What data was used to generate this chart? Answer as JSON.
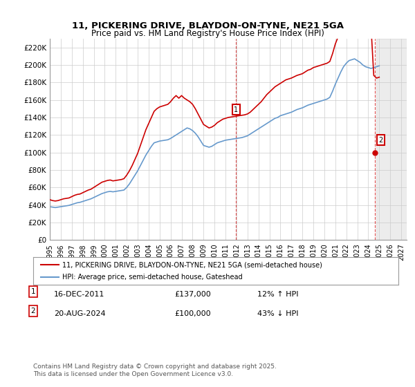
{
  "title": "11, PICKERING DRIVE, BLAYDON-ON-TYNE, NE21 5GA",
  "subtitle": "Price paid vs. HM Land Registry's House Price Index (HPI)",
  "ylabel": "",
  "xlabel": "",
  "ylim": [
    0,
    230000
  ],
  "xlim_start": 1995.0,
  "xlim_end": 2027.5,
  "yticks": [
    0,
    20000,
    40000,
    60000,
    80000,
    100000,
    120000,
    140000,
    160000,
    180000,
    200000,
    220000
  ],
  "ytick_labels": [
    "£0",
    "£20K",
    "£40K",
    "£60K",
    "£80K",
    "£100K",
    "£120K",
    "£140K",
    "£160K",
    "£180K",
    "£200K",
    "£220K"
  ],
  "xticks": [
    1995,
    1996,
    1997,
    1998,
    1999,
    2000,
    2001,
    2002,
    2003,
    2004,
    2005,
    2006,
    2007,
    2008,
    2009,
    2010,
    2011,
    2012,
    2013,
    2014,
    2015,
    2016,
    2017,
    2018,
    2019,
    2020,
    2021,
    2022,
    2023,
    2024,
    2025,
    2026,
    2027
  ],
  "property_color": "#cc0000",
  "hpi_color": "#6699cc",
  "background_color": "#ffffff",
  "grid_color": "#cccccc",
  "sale1_x": 2011.96,
  "sale1_y": 137000,
  "sale1_label": "1",
  "sale2_x": 2024.63,
  "sale2_y": 100000,
  "sale2_label": "2",
  "legend_property": "11, PICKERING DRIVE, BLAYDON-ON-TYNE, NE21 5GA (semi-detached house)",
  "legend_hpi": "HPI: Average price, semi-detached house, Gateshead",
  "note1_label": "1",
  "note1_date": "16-DEC-2011",
  "note1_price": "£137,000",
  "note1_hpi": "12% ↑ HPI",
  "note2_label": "2",
  "note2_date": "20-AUG-2024",
  "note2_price": "£100,000",
  "note2_hpi": "43% ↓ HPI",
  "footer": "Contains HM Land Registry data © Crown copyright and database right 2025.\nThis data is licensed under the Open Government Licence v3.0.",
  "hpi_data_x": [
    1995.0,
    1995.25,
    1995.5,
    1995.75,
    1996.0,
    1996.25,
    1996.5,
    1996.75,
    1997.0,
    1997.25,
    1997.5,
    1997.75,
    1998.0,
    1998.25,
    1998.5,
    1998.75,
    1999.0,
    1999.25,
    1999.5,
    1999.75,
    2000.0,
    2000.25,
    2000.5,
    2000.75,
    2001.0,
    2001.25,
    2001.5,
    2001.75,
    2002.0,
    2002.25,
    2002.5,
    2002.75,
    2003.0,
    2003.25,
    2003.5,
    2003.75,
    2004.0,
    2004.25,
    2004.5,
    2004.75,
    2005.0,
    2005.25,
    2005.5,
    2005.75,
    2006.0,
    2006.25,
    2006.5,
    2006.75,
    2007.0,
    2007.25,
    2007.5,
    2007.75,
    2008.0,
    2008.25,
    2008.5,
    2008.75,
    2009.0,
    2009.25,
    2009.5,
    2009.75,
    2010.0,
    2010.25,
    2010.5,
    2010.75,
    2011.0,
    2011.25,
    2011.5,
    2011.75,
    2012.0,
    2012.25,
    2012.5,
    2012.75,
    2013.0,
    2013.25,
    2013.5,
    2013.75,
    2014.0,
    2014.25,
    2014.5,
    2014.75,
    2015.0,
    2015.25,
    2015.5,
    2015.75,
    2016.0,
    2016.25,
    2016.5,
    2016.75,
    2017.0,
    2017.25,
    2017.5,
    2017.75,
    2018.0,
    2018.25,
    2018.5,
    2018.75,
    2019.0,
    2019.25,
    2019.5,
    2019.75,
    2020.0,
    2020.25,
    2020.5,
    2020.75,
    2021.0,
    2021.25,
    2021.5,
    2021.75,
    2022.0,
    2022.25,
    2022.5,
    2022.75,
    2023.0,
    2023.25,
    2023.5,
    2023.75,
    2024.0,
    2024.25,
    2024.5,
    2024.75,
    2025.0
  ],
  "hpi_data_y": [
    38000,
    37500,
    37000,
    37500,
    38000,
    38500,
    39000,
    39500,
    40500,
    41500,
    42500,
    43000,
    44000,
    45000,
    46000,
    47000,
    48500,
    50000,
    51500,
    53000,
    54000,
    55000,
    55500,
    55000,
    55500,
    56000,
    56500,
    57000,
    60000,
    64000,
    69000,
    74000,
    79000,
    85000,
    91000,
    97000,
    102000,
    107000,
    111000,
    112000,
    113000,
    113500,
    114000,
    114500,
    116000,
    118000,
    120000,
    122000,
    124000,
    126000,
    128000,
    127000,
    125000,
    122000,
    118000,
    113000,
    108000,
    107000,
    106000,
    107000,
    109000,
    111000,
    112000,
    113000,
    114000,
    114500,
    115000,
    115500,
    116000,
    116500,
    117000,
    118000,
    119000,
    121000,
    123000,
    125000,
    127000,
    129000,
    131000,
    133000,
    135000,
    137000,
    139000,
    140000,
    142000,
    143000,
    144000,
    145000,
    146000,
    147500,
    149000,
    150000,
    151000,
    152500,
    154000,
    155000,
    156000,
    157000,
    158000,
    159000,
    160000,
    161000,
    163000,
    170000,
    178000,
    185000,
    192000,
    198000,
    202000,
    205000,
    206000,
    207000,
    205000,
    203000,
    200000,
    198000,
    197000,
    196000,
    197000,
    198000,
    199000
  ],
  "property_data_x": [
    1995.0,
    1995.25,
    1995.5,
    1995.75,
    1996.0,
    1996.25,
    1996.5,
    1996.75,
    1997.0,
    1997.25,
    1997.5,
    1997.75,
    1998.0,
    1998.25,
    1998.5,
    1998.75,
    1999.0,
    1999.25,
    1999.5,
    1999.75,
    2000.0,
    2000.25,
    2000.5,
    2000.75,
    2001.0,
    2001.25,
    2001.5,
    2001.75,
    2002.0,
    2002.25,
    2002.5,
    2002.75,
    2003.0,
    2003.25,
    2003.5,
    2003.75,
    2004.0,
    2004.25,
    2004.5,
    2004.75,
    2005.0,
    2005.25,
    2005.5,
    2005.75,
    2006.0,
    2006.25,
    2006.5,
    2006.75,
    2007.0,
    2007.25,
    2007.5,
    2007.75,
    2008.0,
    2008.25,
    2008.5,
    2008.75,
    2009.0,
    2009.25,
    2009.5,
    2009.75,
    2010.0,
    2010.25,
    2010.5,
    2010.75,
    2011.0,
    2011.25,
    2011.5,
    2011.75,
    2012.0,
    2012.25,
    2012.5,
    2012.75,
    2013.0,
    2013.25,
    2013.5,
    2013.75,
    2014.0,
    2014.25,
    2014.5,
    2014.75,
    2015.0,
    2015.25,
    2015.5,
    2015.75,
    2016.0,
    2016.25,
    2016.5,
    2016.75,
    2017.0,
    2017.25,
    2017.5,
    2017.75,
    2018.0,
    2018.25,
    2018.5,
    2018.75,
    2019.0,
    2019.25,
    2019.5,
    2019.75,
    2020.0,
    2020.25,
    2020.5,
    2020.75,
    2021.0,
    2021.25,
    2021.5,
    2021.75,
    2022.0,
    2022.25,
    2022.5,
    2022.75,
    2023.0,
    2023.25,
    2023.5,
    2023.75,
    2024.0,
    2024.25,
    2024.5,
    2024.75,
    2025.0
  ],
  "property_data_y": [
    46000,
    45000,
    44500,
    45000,
    46000,
    47000,
    47500,
    48000,
    49500,
    51000,
    52000,
    52500,
    54000,
    55500,
    57000,
    58000,
    60000,
    62000,
    64000,
    66000,
    67000,
    68000,
    68500,
    67500,
    68000,
    68500,
    69000,
    70000,
    74000,
    79000,
    85000,
    92000,
    99000,
    108000,
    117000,
    126000,
    133000,
    140000,
    147000,
    150000,
    152000,
    153000,
    154000,
    155000,
    158000,
    162000,
    165000,
    162000,
    165000,
    162000,
    160000,
    158000,
    155000,
    150000,
    144000,
    138000,
    132000,
    130000,
    128000,
    129000,
    131000,
    134000,
    136000,
    138000,
    139000,
    140000,
    140500,
    141000,
    141500,
    142000,
    142500,
    143000,
    144000,
    146000,
    149000,
    152000,
    155000,
    158000,
    162000,
    166000,
    169000,
    172000,
    175000,
    177000,
    179000,
    181000,
    183000,
    184000,
    185000,
    186500,
    188000,
    189000,
    190000,
    192000,
    194000,
    195000,
    197000,
    198000,
    199000,
    200000,
    201000,
    202000,
    204000,
    213000,
    224000,
    232000,
    240000,
    247000,
    252000,
    257000,
    258000,
    259000,
    257000,
    254000,
    250000,
    247000,
    245000,
    244000,
    188000,
    185000,
    186000
  ]
}
